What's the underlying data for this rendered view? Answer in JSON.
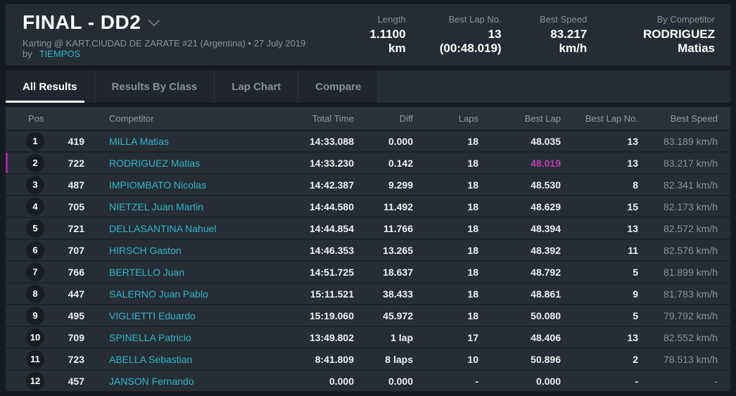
{
  "header": {
    "title": "FINAL - DD2",
    "subtitle": "Karting @ KART.CIUDAD DE ZARATE #21 (Argentina) • 27 July 2019 by",
    "subtitle_link": "TIEMPOS",
    "stats": [
      {
        "label": "Length",
        "value": "1.1100 km"
      },
      {
        "label": "Best Lap No.",
        "value": "13 (00:48.019)"
      },
      {
        "label": "Best Speed",
        "value": "83.217 km/h"
      },
      {
        "label": "By Competitor",
        "value": "RODRIGUEZ Matias"
      }
    ]
  },
  "tabs": [
    {
      "label": "All Results",
      "active": true
    },
    {
      "label": "Results By Class",
      "active": false
    },
    {
      "label": "Lap Chart",
      "active": false
    },
    {
      "label": "Compare",
      "active": false
    }
  ],
  "table": {
    "columns": [
      "Pos",
      "Competitor",
      "Total Time",
      "Diff",
      "Laps",
      "Best Lap",
      "Best Lap No.",
      "Best Speed"
    ],
    "rows": [
      {
        "pos": "1",
        "kart": "419",
        "name": "MILLA Matias",
        "total": "14:33.088",
        "diff": "0.000",
        "laps": "18",
        "best_lap": "48.035",
        "best_lap_no": "13",
        "best_speed": "83.189 km/h",
        "highlight": false,
        "best_lap_overall": false
      },
      {
        "pos": "2",
        "kart": "722",
        "name": "RODRIGUEZ Matias",
        "total": "14:33.230",
        "diff": "0.142",
        "laps": "18",
        "best_lap": "48.019",
        "best_lap_no": "13",
        "best_speed": "83.217 km/h",
        "highlight": true,
        "best_lap_overall": true
      },
      {
        "pos": "3",
        "kart": "487",
        "name": "IMPIOMBATO Nicolas",
        "total": "14:42.387",
        "diff": "9.299",
        "laps": "18",
        "best_lap": "48.530",
        "best_lap_no": "8",
        "best_speed": "82.341 km/h",
        "highlight": false,
        "best_lap_overall": false
      },
      {
        "pos": "4",
        "kart": "705",
        "name": "NIETZEL Juan Martin",
        "total": "14:44.580",
        "diff": "11.492",
        "laps": "18",
        "best_lap": "48.629",
        "best_lap_no": "15",
        "best_speed": "82.173 km/h",
        "highlight": false,
        "best_lap_overall": false
      },
      {
        "pos": "5",
        "kart": "721",
        "name": "DELLASANTINA Nahuel",
        "total": "14:44.854",
        "diff": "11.766",
        "laps": "18",
        "best_lap": "48.394",
        "best_lap_no": "13",
        "best_speed": "82.572 km/h",
        "highlight": false,
        "best_lap_overall": false
      },
      {
        "pos": "6",
        "kart": "707",
        "name": "HIRSCH Gaston",
        "total": "14:46.353",
        "diff": "13.265",
        "laps": "18",
        "best_lap": "48.392",
        "best_lap_no": "11",
        "best_speed": "82.576 km/h",
        "highlight": false,
        "best_lap_overall": false
      },
      {
        "pos": "7",
        "kart": "766",
        "name": "BERTELLO Juan",
        "total": "14:51.725",
        "diff": "18.637",
        "laps": "18",
        "best_lap": "48.792",
        "best_lap_no": "5",
        "best_speed": "81.899 km/h",
        "highlight": false,
        "best_lap_overall": false
      },
      {
        "pos": "8",
        "kart": "447",
        "name": "SALERNO Juan Pablo",
        "total": "15:11.521",
        "diff": "38.433",
        "laps": "18",
        "best_lap": "48.861",
        "best_lap_no": "9",
        "best_speed": "81.783 km/h",
        "highlight": false,
        "best_lap_overall": false
      },
      {
        "pos": "9",
        "kart": "495",
        "name": "VIGLIETTI Eduardo",
        "total": "15:19.060",
        "diff": "45.972",
        "laps": "18",
        "best_lap": "50.080",
        "best_lap_no": "5",
        "best_speed": "79.792 km/h",
        "highlight": false,
        "best_lap_overall": false
      },
      {
        "pos": "10",
        "kart": "709",
        "name": "SPINELLA Patricio",
        "total": "13:49.802",
        "diff": "1 lap",
        "laps": "17",
        "best_lap": "48.406",
        "best_lap_no": "13",
        "best_speed": "82.552 km/h",
        "highlight": false,
        "best_lap_overall": false
      },
      {
        "pos": "11",
        "kart": "723",
        "name": "ABELLA Sebastian",
        "total": "8:41.809",
        "diff": "8 laps",
        "laps": "10",
        "best_lap": "50.896",
        "best_lap_no": "2",
        "best_speed": "78.513 km/h",
        "highlight": false,
        "best_lap_overall": false
      },
      {
        "pos": "12",
        "kart": "457",
        "name": "JANSON Fernando",
        "total": "0.000",
        "diff": "0.000",
        "laps": "-",
        "best_lap": "0.000",
        "best_lap_no": "-",
        "best_speed": "-",
        "highlight": false,
        "best_lap_overall": false
      }
    ]
  },
  "colors": {
    "accent_cyan": "#2eb8c9",
    "best_lap_magenta": "#bd3fae",
    "highlight_border": "#ab1f9f",
    "panel": "#262c35",
    "page_background": "#151a21"
  }
}
